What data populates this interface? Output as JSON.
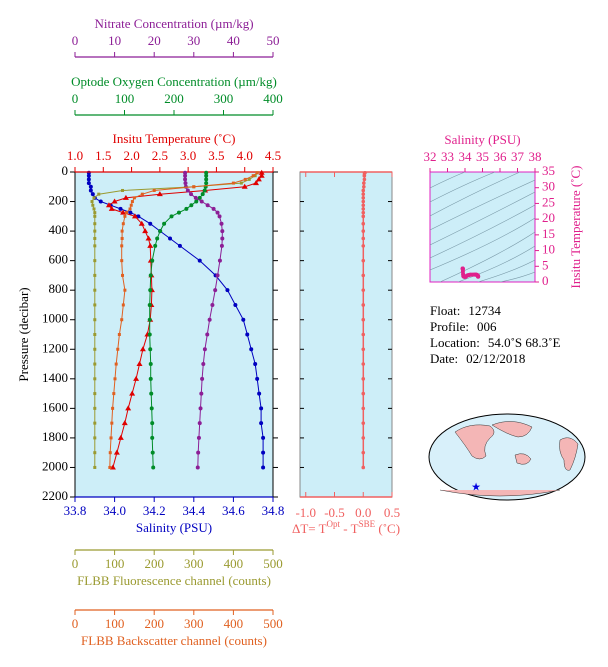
{
  "chart_data": [
    {
      "type": "profile",
      "ylabel": "Pressure (decibar)",
      "ylim": [
        0,
        2200
      ],
      "yticks": [
        0,
        200,
        400,
        600,
        800,
        1000,
        1200,
        1400,
        1600,
        1800,
        2000,
        2200
      ],
      "y": [
        5,
        25,
        50,
        75,
        100,
        125,
        150,
        175,
        200,
        225,
        250,
        275,
        300,
        350,
        400,
        450,
        500,
        600,
        700,
        800,
        900,
        1000,
        1100,
        1200,
        1300,
        1400,
        1500,
        1600,
        1700,
        1800,
        1900,
        2000
      ],
      "series": [
        {
          "name": "Salinity (PSU)",
          "color": "#0000c0",
          "side": "bottom",
          "marker": "circle",
          "xlim": [
            33.8,
            34.8
          ],
          "xticks": [
            33.8,
            {
              "value": 34,
              "label": "34.0"
            },
            34.2,
            34.4,
            34.6,
            34.8
          ],
          "values": [
            33.87,
            33.87,
            33.87,
            33.87,
            33.88,
            33.88,
            33.89,
            33.9,
            33.93,
            33.98,
            34.03,
            34.08,
            34.12,
            34.18,
            34.23,
            34.28,
            34.33,
            34.43,
            34.51,
            34.57,
            34.61,
            34.65,
            34.67,
            34.69,
            34.71,
            34.72,
            34.73,
            34.74,
            34.74,
            34.75,
            34.75,
            34.75
          ]
        },
        {
          "name": "Insitu Temperature (˚C)",
          "color": "#e00000",
          "side": "top",
          "marker": "triangle",
          "xlim": [
            1,
            4.5
          ],
          "xticks": [
            {
              "value": 1,
              "label": "1.0"
            },
            1.5,
            {
              "value": 2,
              "label": "2.0"
            },
            2.5,
            {
              "value": 3,
              "label": "3.0"
            },
            3.5,
            {
              "value": 4,
              "label": "4.0"
            },
            4.5
          ],
          "values": [
            4.3,
            4.3,
            4.25,
            4.2,
            4.0,
            3.3,
            2.5,
            1.9,
            1.7,
            1.6,
            1.65,
            1.85,
            2.06,
            2.18,
            2.24,
            2.3,
            2.33,
            2.34,
            2.35,
            2.36,
            2.35,
            2.33,
            2.28,
            2.2,
            2.14,
            2.08,
            2.01,
            1.94,
            1.88,
            1.81,
            1.74,
            1.67
          ]
        },
        {
          "name": "Optode Oxygen Concentration (µm/kg)",
          "color": "#008c28",
          "side": "top",
          "marker": "circle",
          "xlim": [
            0,
            400
          ],
          "xticks": [
            0,
            100,
            200,
            300,
            400
          ],
          "values": [
            265,
            265,
            265,
            265,
            264,
            262,
            258,
            252,
            245,
            235,
            225,
            210,
            195,
            180,
            172,
            166,
            162,
            156,
            153,
            152,
            151,
            151,
            151,
            152,
            153,
            153,
            154,
            155,
            156,
            156,
            157,
            158
          ]
        },
        {
          "name": "Nitrate Concentration (µm/kg)",
          "color": "#8c1e96",
          "side": "top",
          "marker": "circle",
          "xlim": [
            0,
            50
          ],
          "xticks": [
            0,
            10,
            20,
            30,
            40,
            50
          ],
          "values": [
            27.8,
            27.8,
            27.8,
            27.9,
            28,
            28.5,
            29.3,
            30.5,
            32,
            33.5,
            35,
            36,
            36.5,
            37,
            37.2,
            37.2,
            37.1,
            36.6,
            36,
            35.4,
            34.7,
            34,
            33.4,
            32.8,
            32.4,
            32.1,
            31.9,
            31.7,
            31.5,
            31.3,
            31.1,
            31
          ]
        },
        {
          "name": "FLBB Fluorescence channel (counts)",
          "color": "#9a9a30",
          "side": "bottom",
          "marker": "square",
          "xlim": [
            0,
            500
          ],
          "xticks": [
            0,
            100,
            200,
            300,
            400,
            500
          ],
          "values": [
            460,
            455,
            440,
            420,
            300,
            120,
            60,
            48,
            43,
            45,
            48,
            50,
            50,
            50,
            50,
            50,
            50,
            50,
            50,
            50,
            50,
            50,
            50,
            50,
            50,
            50,
            50,
            50,
            50,
            50,
            50,
            50
          ]
        },
        {
          "name": "FLBB Backscatter channel (counts)",
          "color": "#e06020",
          "side": "bottom",
          "marker": "square",
          "xlim": [
            0,
            500
          ],
          "xticks": [
            0,
            100,
            200,
            300,
            400,
            500
          ],
          "values": [
            460,
            450,
            430,
            400,
            300,
            200,
            170,
            150,
            145,
            142,
            139,
            130,
            126,
            122,
            119,
            119,
            118,
            118,
            120,
            126,
            122,
            118,
            112,
            108,
            104,
            101,
            98,
            95,
            93,
            91,
            89,
            88
          ]
        }
      ]
    },
    {
      "type": "delta",
      "xlabel": [
        "ΔT= T",
        "Opt",
        " - T",
        "SBE",
        " (˚C)"
      ],
      "color": "#f06060",
      "xlim": [
        -1.1,
        0.5
      ],
      "xticks": [
        {
          "value": -1,
          "label": "-1.0"
        },
        -0.5,
        {
          "value": 0,
          "label": "0.0"
        },
        0.5
      ],
      "values": [
        0.03,
        0.02,
        0.02,
        0.01,
        0.01,
        0,
        0,
        0,
        0,
        0,
        0,
        0,
        0,
        0,
        0,
        0,
        0,
        0,
        0,
        0,
        0,
        0,
        0,
        0,
        0,
        0,
        0,
        0,
        0,
        0,
        0,
        0
      ]
    },
    {
      "type": "ts",
      "xlabel": "Salinity (PSU)",
      "ylabel": "Insitu Temperature (˚C)",
      "color": "#e0208c",
      "xlim": [
        32,
        38
      ],
      "xticks": [
        32,
        33,
        34,
        35,
        36,
        37,
        38
      ],
      "ylim": [
        0,
        35
      ],
      "yticks": [
        0,
        5,
        10,
        15,
        20,
        25,
        30,
        35
      ]
    }
  ],
  "float_info": [
    {
      "label": "Float:",
      "value": "12734"
    },
    {
      "label": "Profile:",
      "value": "006"
    },
    {
      "label": "Location:",
      "value": "54.0˚S  68.3˚E"
    },
    {
      "label": "Date:",
      "value": "02/12/2018"
    }
  ]
}
